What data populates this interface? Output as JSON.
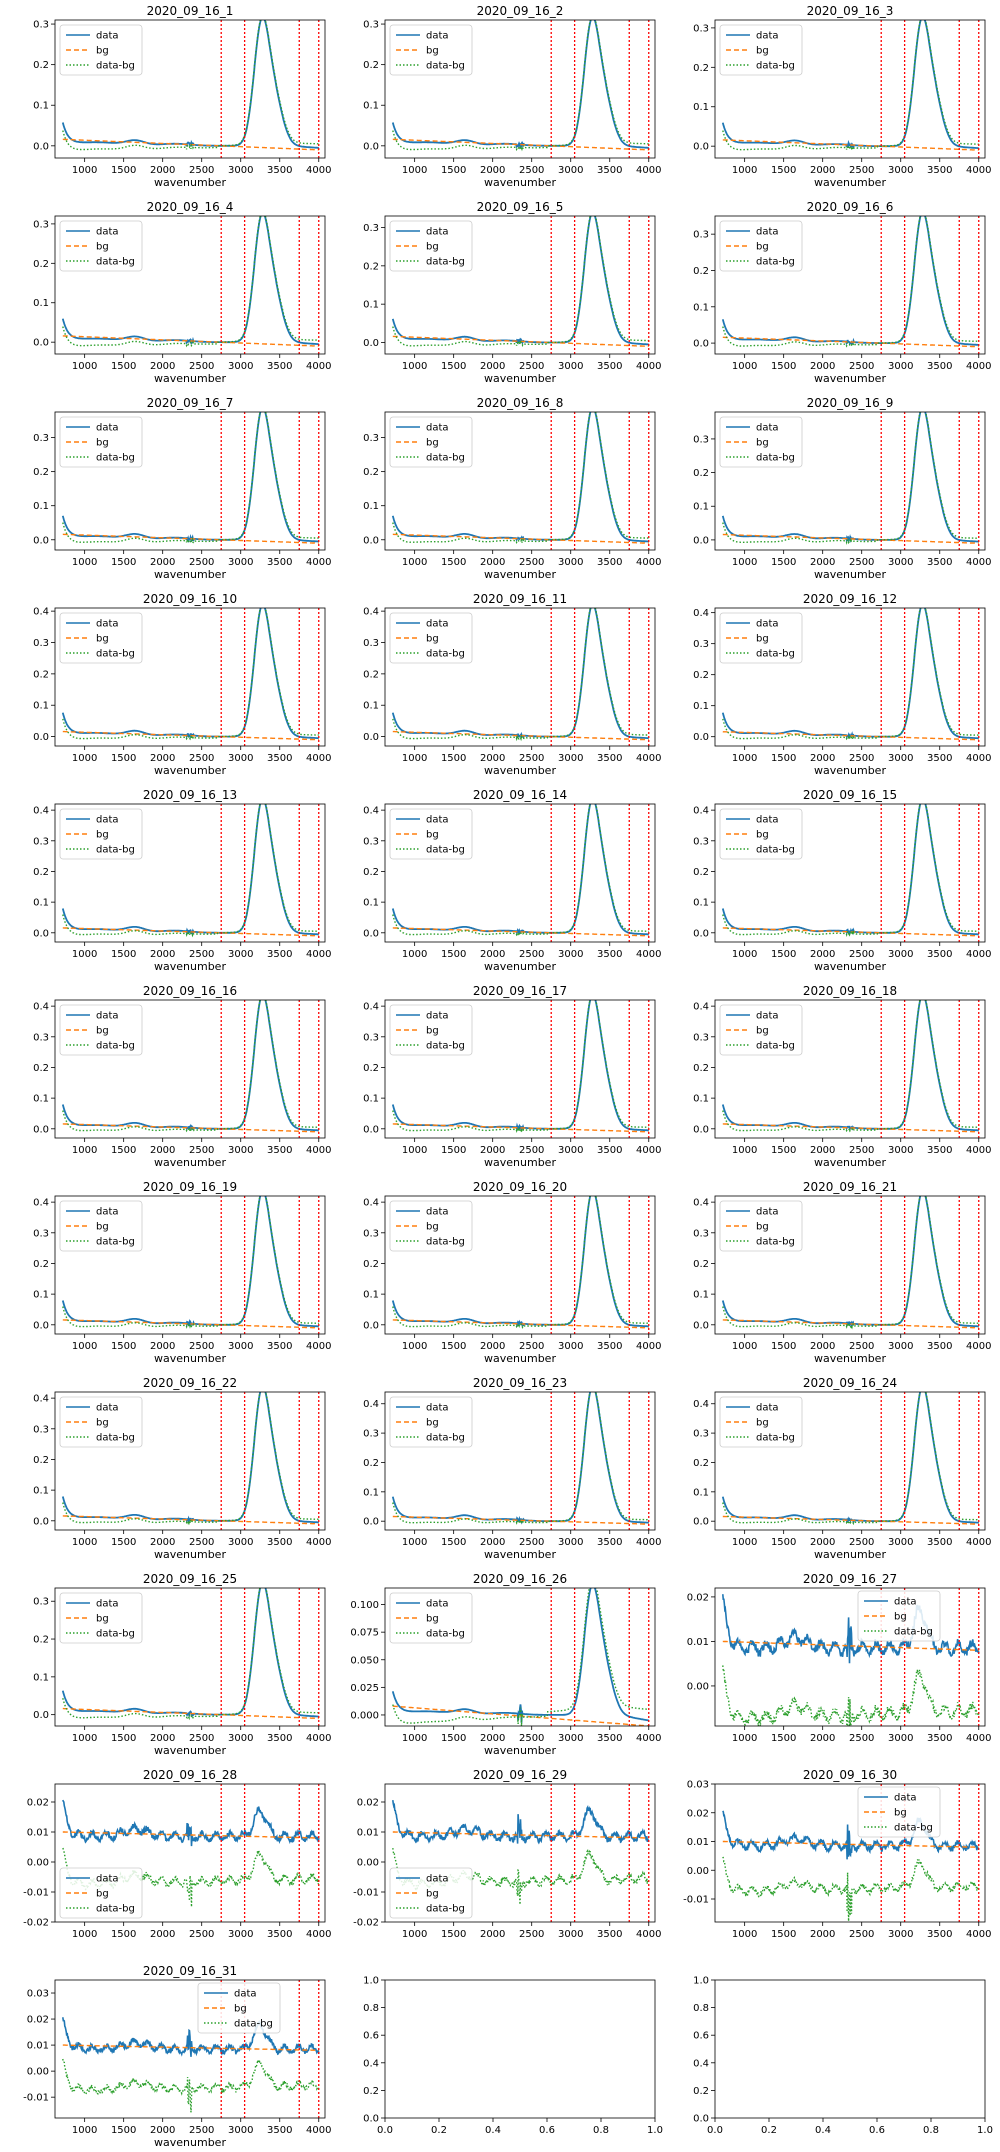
{
  "figure": {
    "panels": [
      {
        "title": "2020_09_16_1",
        "xlabel": "wavenumber",
        "ylim": [
          -0.03,
          0.31
        ],
        "yticks": [
          "0.0",
          "0.1",
          "0.2",
          "0.3"
        ],
        "peak": 0.29,
        "style": "smooth"
      },
      {
        "title": "2020_09_16_2",
        "xlabel": "wavenumber",
        "ylim": [
          -0.03,
          0.31
        ],
        "yticks": [
          "0.0",
          "0.1",
          "0.2",
          "0.3"
        ],
        "peak": 0.29,
        "style": "smooth"
      },
      {
        "title": "2020_09_16_3",
        "xlabel": "wavenumber",
        "ylim": [
          -0.03,
          0.32
        ],
        "yticks": [
          "0.0",
          "0.1",
          "0.2",
          "0.3"
        ],
        "peak": 0.3,
        "style": "smooth"
      },
      {
        "title": "2020_09_16_4",
        "xlabel": "wavenumber",
        "ylim": [
          -0.03,
          0.32
        ],
        "yticks": [
          "0.0",
          "0.1",
          "0.2",
          "0.3"
        ],
        "peak": 0.3,
        "style": "smooth"
      },
      {
        "title": "2020_09_16_5",
        "xlabel": "wavenumber",
        "ylim": [
          -0.03,
          0.33
        ],
        "yticks": [
          "0.0",
          "0.1",
          "0.2",
          "0.3"
        ],
        "peak": 0.31,
        "style": "smooth"
      },
      {
        "title": "2020_09_16_6",
        "xlabel": "wavenumber",
        "ylim": [
          -0.03,
          0.35
        ],
        "yticks": [
          "0.0",
          "0.1",
          "0.2",
          "0.3"
        ],
        "peak": 0.33,
        "style": "smooth"
      },
      {
        "title": "2020_09_16_7",
        "xlabel": "wavenumber",
        "ylim": [
          -0.03,
          0.375
        ],
        "yticks": [
          "0.0",
          "0.1",
          "0.2",
          "0.3"
        ],
        "peak": 0.355,
        "style": "smooth"
      },
      {
        "title": "2020_09_16_8",
        "xlabel": "wavenumber",
        "ylim": [
          -0.03,
          0.375
        ],
        "yticks": [
          "0.0",
          "0.1",
          "0.2",
          "0.3"
        ],
        "peak": 0.355,
        "style": "smooth"
      },
      {
        "title": "2020_09_16_9",
        "xlabel": "wavenumber",
        "ylim": [
          -0.03,
          0.38
        ],
        "yticks": [
          "0.0",
          "0.1",
          "0.2",
          "0.3"
        ],
        "peak": 0.36,
        "style": "smooth"
      },
      {
        "title": "2020_09_16_10",
        "xlabel": "wavenumber",
        "ylim": [
          -0.03,
          0.41
        ],
        "yticks": [
          "0.0",
          "0.1",
          "0.2",
          "0.3",
          "0.4"
        ],
        "peak": 0.385,
        "style": "smooth"
      },
      {
        "title": "2020_09_16_11",
        "xlabel": "wavenumber",
        "ylim": [
          -0.03,
          0.41
        ],
        "yticks": [
          "0.0",
          "0.1",
          "0.2",
          "0.3",
          "0.4"
        ],
        "peak": 0.385,
        "style": "smooth"
      },
      {
        "title": "2020_09_16_12",
        "xlabel": "wavenumber",
        "ylim": [
          -0.03,
          0.415
        ],
        "yticks": [
          "0.0",
          "0.1",
          "0.2",
          "0.3",
          "0.4"
        ],
        "peak": 0.39,
        "style": "smooth"
      },
      {
        "title": "2020_09_16_13",
        "xlabel": "wavenumber",
        "ylim": [
          -0.03,
          0.42
        ],
        "yticks": [
          "0.0",
          "0.1",
          "0.2",
          "0.3",
          "0.4"
        ],
        "peak": 0.4,
        "style": "smooth"
      },
      {
        "title": "2020_09_16_14",
        "xlabel": "wavenumber",
        "ylim": [
          -0.03,
          0.42
        ],
        "yticks": [
          "0.0",
          "0.1",
          "0.2",
          "0.3",
          "0.4"
        ],
        "peak": 0.4,
        "style": "smooth"
      },
      {
        "title": "2020_09_16_15",
        "xlabel": "wavenumber",
        "ylim": [
          -0.03,
          0.42
        ],
        "yticks": [
          "0.0",
          "0.1",
          "0.2",
          "0.3",
          "0.4"
        ],
        "peak": 0.4,
        "style": "smooth"
      },
      {
        "title": "2020_09_16_16",
        "xlabel": "wavenumber",
        "ylim": [
          -0.03,
          0.42
        ],
        "yticks": [
          "0.0",
          "0.1",
          "0.2",
          "0.3",
          "0.4"
        ],
        "peak": 0.4,
        "style": "smooth"
      },
      {
        "title": "2020_09_16_17",
        "xlabel": "wavenumber",
        "ylim": [
          -0.03,
          0.42
        ],
        "yticks": [
          "0.0",
          "0.1",
          "0.2",
          "0.3",
          "0.4"
        ],
        "peak": 0.4,
        "style": "smooth"
      },
      {
        "title": "2020_09_16_18",
        "xlabel": "wavenumber",
        "ylim": [
          -0.03,
          0.42
        ],
        "yticks": [
          "0.0",
          "0.1",
          "0.2",
          "0.3",
          "0.4"
        ],
        "peak": 0.4,
        "style": "smooth"
      },
      {
        "title": "2020_09_16_19",
        "xlabel": "wavenumber",
        "ylim": [
          -0.03,
          0.42
        ],
        "yticks": [
          "0.0",
          "0.1",
          "0.2",
          "0.3",
          "0.4"
        ],
        "peak": 0.4,
        "style": "smooth"
      },
      {
        "title": "2020_09_16_20",
        "xlabel": "wavenumber",
        "ylim": [
          -0.03,
          0.42
        ],
        "yticks": [
          "0.0",
          "0.1",
          "0.2",
          "0.3",
          "0.4"
        ],
        "peak": 0.4,
        "style": "smooth"
      },
      {
        "title": "2020_09_16_21",
        "xlabel": "wavenumber",
        "ylim": [
          -0.03,
          0.42
        ],
        "yticks": [
          "0.0",
          "0.1",
          "0.2",
          "0.3",
          "0.4"
        ],
        "peak": 0.4,
        "style": "smooth"
      },
      {
        "title": "2020_09_16_22",
        "xlabel": "wavenumber",
        "ylim": [
          -0.03,
          0.42
        ],
        "yticks": [
          "0.0",
          "0.1",
          "0.2",
          "0.3",
          "0.4"
        ],
        "peak": 0.4,
        "style": "smooth"
      },
      {
        "title": "2020_09_16_23",
        "xlabel": "wavenumber",
        "ylim": [
          -0.03,
          0.44
        ],
        "yticks": [
          "0.0",
          "0.1",
          "0.2",
          "0.3",
          "0.4"
        ],
        "peak": 0.42,
        "style": "smooth"
      },
      {
        "title": "2020_09_16_24",
        "xlabel": "wavenumber",
        "ylim": [
          -0.03,
          0.44
        ],
        "yticks": [
          "0.0",
          "0.1",
          "0.2",
          "0.3",
          "0.4"
        ],
        "peak": 0.42,
        "style": "smooth"
      },
      {
        "title": "2020_09_16_25",
        "xlabel": "wavenumber",
        "ylim": [
          -0.03,
          0.335
        ],
        "yticks": [
          "0.0",
          "0.1",
          "0.2",
          "0.3"
        ],
        "peak": 0.32,
        "style": "smooth"
      },
      {
        "title": "2020_09_16_26",
        "xlabel": "wavenumber",
        "ylim": [
          -0.01,
          0.115
        ],
        "yticks": [
          "0.000",
          "0.025",
          "0.050",
          "0.075",
          "0.100"
        ],
        "peak": 0.108,
        "style": "small"
      },
      {
        "title": "2020_09_16_27",
        "xlabel": "",
        "ylim": [
          -0.009,
          0.022
        ],
        "yticks": [
          "0.00",
          "0.01",
          "0.02"
        ],
        "peak": 0.017,
        "style": "noisy",
        "legend": "top-center"
      },
      {
        "title": "2020_09_16_28",
        "xlabel": "",
        "ylim": [
          -0.02,
          0.026
        ],
        "yticks": [
          "-0.02",
          "-0.01",
          "0.00",
          "0.01",
          "0.02"
        ],
        "peak": 0.017,
        "style": "noisy",
        "legend": "bottom-left"
      },
      {
        "title": "2020_09_16_29",
        "xlabel": "",
        "ylim": [
          -0.02,
          0.026
        ],
        "yticks": [
          "-0.02",
          "-0.01",
          "0.00",
          "0.01",
          "0.02"
        ],
        "peak": 0.017,
        "style": "noisy",
        "legend": "bottom-left"
      },
      {
        "title": "2020_09_16_30",
        "xlabel": "",
        "ylim": [
          -0.018,
          0.03
        ],
        "yticks": [
          "-0.01",
          "0.00",
          "0.01",
          "0.02",
          "0.03"
        ],
        "peak": 0.017,
        "style": "noisy",
        "legend": "top-center"
      },
      {
        "title": "2020_09_16_31",
        "xlabel": "wavenumber",
        "ylim": [
          -0.018,
          0.035
        ],
        "yticks": [
          "-0.01",
          "0.00",
          "0.01",
          "0.02",
          "0.03"
        ],
        "peak": 0.018,
        "style": "noisy",
        "legend": "top-center"
      }
    ],
    "empty_axes_ticks": [
      "0.0",
      "0.2",
      "0.4",
      "0.6",
      "0.8",
      "1.0"
    ]
  },
  "chart_data": {
    "type": "line",
    "xlabel": "wavenumber",
    "xlim": [
      620,
      4080
    ],
    "xticks": [
      1000,
      1500,
      2000,
      2500,
      3000,
      3500,
      4000
    ],
    "vlines": [
      2750,
      3050,
      3750,
      4000
    ],
    "series": [
      {
        "name": "data",
        "color": "#1f77b4",
        "style": "solid"
      },
      {
        "name": "bg",
        "color": "#ff7f0e",
        "style": "dashed"
      },
      {
        "name": "data-bg",
        "color": "#2ca02c",
        "style": "dotted"
      }
    ],
    "vline_color": "#ff0000",
    "legend": "top-left",
    "grid": false
  }
}
